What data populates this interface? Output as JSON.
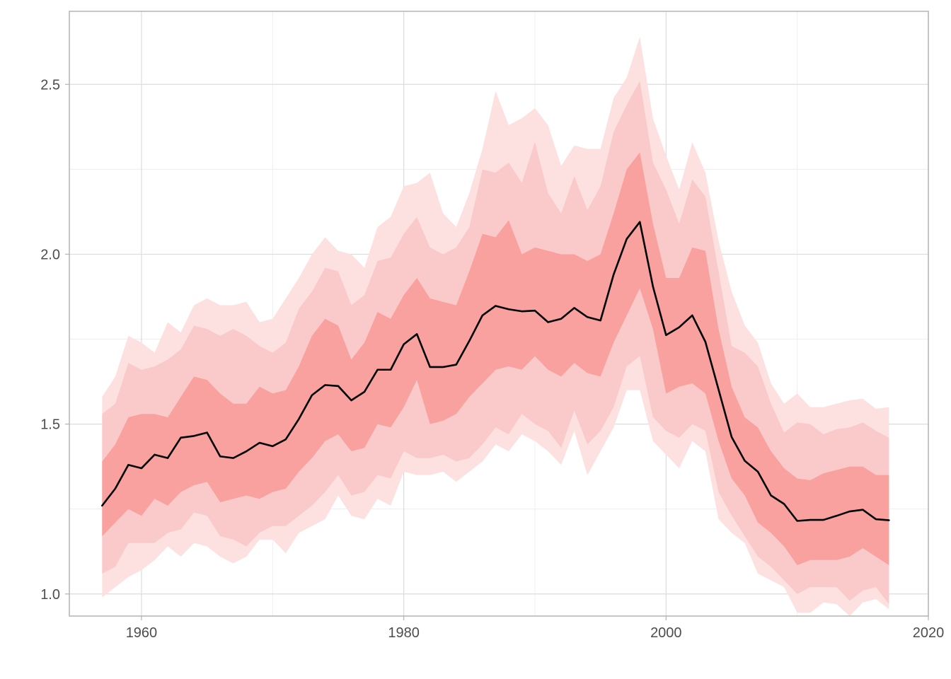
{
  "chart_data": {
    "type": "area",
    "title": "",
    "xlabel": "",
    "ylabel": "",
    "xlim": [
      1954.5,
      2020
    ],
    "ylim": [
      0.935,
      2.715
    ],
    "x_ticks": [
      1960,
      1980,
      2000,
      2020
    ],
    "x_tick_labels": [
      "1960",
      "1980",
      "2000",
      "2020"
    ],
    "y_ticks": [
      1.0,
      1.5,
      2.0,
      2.5
    ],
    "y_tick_labels": [
      "1.0",
      "1.5",
      "2.0",
      "2.5"
    ],
    "grid": true,
    "legend": "none",
    "colors": {
      "band_outer": "#fde1e1",
      "band_middle": "#facaca",
      "band_inner": "#f8a19e",
      "line": "#000000",
      "grid_major": "#dcdcdc",
      "grid_minor": "#ececec",
      "border": "#b3b3b3"
    },
    "x": [
      1957,
      1958,
      1959,
      1960,
      1961,
      1962,
      1963,
      1964,
      1965,
      1966,
      1967,
      1968,
      1969,
      1970,
      1971,
      1972,
      1973,
      1974,
      1975,
      1976,
      1977,
      1978,
      1979,
      1980,
      1981,
      1982,
      1983,
      1984,
      1985,
      1986,
      1987,
      1988,
      1989,
      1990,
      1991,
      1992,
      1993,
      1994,
      1995,
      1996,
      1997,
      1998,
      1999,
      2000,
      2001,
      2002,
      2003,
      2004,
      2005,
      2006,
      2007,
      2008,
      2009,
      2010,
      2011,
      2012,
      2013,
      2014,
      2015,
      2016,
      2017
    ],
    "median": [
      1.26,
      1.31,
      1.38,
      1.37,
      1.41,
      1.4,
      1.46,
      1.465,
      1.475,
      1.405,
      1.4,
      1.42,
      1.445,
      1.435,
      1.455,
      1.515,
      1.585,
      1.615,
      1.612,
      1.57,
      1.595,
      1.66,
      1.66,
      1.735,
      1.765,
      1.668,
      1.668,
      1.675,
      1.745,
      1.82,
      1.848,
      1.838,
      1.832,
      1.834,
      1.8,
      1.81,
      1.842,
      1.815,
      1.805,
      1.94,
      2.045,
      2.095,
      1.905,
      1.762,
      1.785,
      1.82,
      1.742,
      1.602,
      1.462,
      1.392,
      1.36,
      1.29,
      1.265,
      1.215,
      1.218,
      1.218,
      1.23,
      1.243,
      1.248,
      1.22,
      1.217
    ],
    "bands": [
      {
        "level": "outer",
        "lower": [
          0.99,
          1.02,
          1.05,
          1.07,
          1.1,
          1.14,
          1.11,
          1.15,
          1.14,
          1.11,
          1.09,
          1.11,
          1.16,
          1.16,
          1.12,
          1.18,
          1.2,
          1.22,
          1.29,
          1.23,
          1.22,
          1.28,
          1.26,
          1.36,
          1.35,
          1.35,
          1.36,
          1.33,
          1.36,
          1.39,
          1.44,
          1.42,
          1.47,
          1.45,
          1.42,
          1.38,
          1.48,
          1.35,
          1.42,
          1.49,
          1.6,
          1.6,
          1.45,
          1.41,
          1.37,
          1.45,
          1.42,
          1.22,
          1.18,
          1.15,
          1.06,
          1.04,
          1.02,
          0.945,
          0.945,
          0.975,
          0.97,
          0.935,
          0.975,
          0.985,
          0.955
        ],
        "upper": [
          1.58,
          1.64,
          1.76,
          1.74,
          1.71,
          1.8,
          1.77,
          1.85,
          1.87,
          1.85,
          1.85,
          1.86,
          1.8,
          1.81,
          1.87,
          1.93,
          2.0,
          2.05,
          2.01,
          2.0,
          1.96,
          2.08,
          2.11,
          2.2,
          2.21,
          2.24,
          2.12,
          2.08,
          2.18,
          2.31,
          2.48,
          2.38,
          2.4,
          2.43,
          2.38,
          2.26,
          2.32,
          2.31,
          2.31,
          2.46,
          2.52,
          2.64,
          2.4,
          2.29,
          2.19,
          2.33,
          2.24,
          2.04,
          1.89,
          1.79,
          1.74,
          1.62,
          1.56,
          1.59,
          1.55,
          1.55,
          1.56,
          1.57,
          1.575,
          1.545,
          1.55
        ]
      },
      {
        "level": "middle",
        "lower": [
          1.06,
          1.08,
          1.15,
          1.15,
          1.15,
          1.18,
          1.19,
          1.24,
          1.23,
          1.17,
          1.16,
          1.14,
          1.18,
          1.2,
          1.2,
          1.23,
          1.26,
          1.3,
          1.35,
          1.29,
          1.3,
          1.35,
          1.34,
          1.42,
          1.4,
          1.4,
          1.41,
          1.39,
          1.4,
          1.44,
          1.49,
          1.47,
          1.53,
          1.5,
          1.48,
          1.43,
          1.54,
          1.44,
          1.48,
          1.55,
          1.67,
          1.7,
          1.52,
          1.48,
          1.46,
          1.5,
          1.48,
          1.3,
          1.23,
          1.17,
          1.11,
          1.08,
          1.04,
          1.0,
          1.02,
          1.02,
          1.02,
          0.98,
          1.01,
          1.02,
          0.97
        ],
        "upper": [
          1.53,
          1.56,
          1.68,
          1.66,
          1.67,
          1.69,
          1.72,
          1.79,
          1.78,
          1.76,
          1.78,
          1.76,
          1.73,
          1.71,
          1.74,
          1.84,
          1.89,
          1.96,
          1.95,
          1.85,
          1.88,
          1.98,
          1.99,
          2.06,
          2.11,
          2.02,
          2.0,
          2.02,
          2.08,
          2.25,
          2.24,
          2.27,
          2.21,
          2.33,
          2.18,
          2.12,
          2.23,
          2.13,
          2.2,
          2.36,
          2.44,
          2.51,
          2.27,
          2.19,
          2.09,
          2.22,
          2.17,
          1.95,
          1.73,
          1.71,
          1.67,
          1.56,
          1.475,
          1.505,
          1.5,
          1.47,
          1.485,
          1.49,
          1.505,
          1.48,
          1.46
        ]
      },
      {
        "level": "inner",
        "lower": [
          1.17,
          1.21,
          1.25,
          1.23,
          1.28,
          1.26,
          1.3,
          1.32,
          1.33,
          1.27,
          1.28,
          1.29,
          1.28,
          1.3,
          1.31,
          1.36,
          1.4,
          1.45,
          1.47,
          1.42,
          1.43,
          1.5,
          1.49,
          1.55,
          1.63,
          1.5,
          1.51,
          1.53,
          1.58,
          1.62,
          1.66,
          1.67,
          1.66,
          1.7,
          1.66,
          1.64,
          1.68,
          1.65,
          1.64,
          1.74,
          1.82,
          1.9,
          1.78,
          1.59,
          1.61,
          1.62,
          1.59,
          1.45,
          1.34,
          1.29,
          1.21,
          1.18,
          1.14,
          1.085,
          1.1,
          1.1,
          1.1,
          1.11,
          1.135,
          1.11,
          1.085
        ],
        "upper": [
          1.39,
          1.44,
          1.52,
          1.53,
          1.53,
          1.52,
          1.58,
          1.64,
          1.63,
          1.59,
          1.56,
          1.56,
          1.61,
          1.59,
          1.6,
          1.67,
          1.76,
          1.81,
          1.79,
          1.69,
          1.74,
          1.83,
          1.81,
          1.88,
          1.93,
          1.87,
          1.86,
          1.85,
          1.95,
          2.06,
          2.05,
          2.1,
          2.0,
          2.02,
          2.01,
          2.0,
          2.0,
          1.98,
          2.0,
          2.12,
          2.25,
          2.3,
          2.09,
          1.93,
          1.93,
          2.02,
          2.01,
          1.78,
          1.61,
          1.52,
          1.49,
          1.42,
          1.37,
          1.34,
          1.335,
          1.355,
          1.365,
          1.375,
          1.375,
          1.35,
          1.35
        ]
      }
    ]
  }
}
